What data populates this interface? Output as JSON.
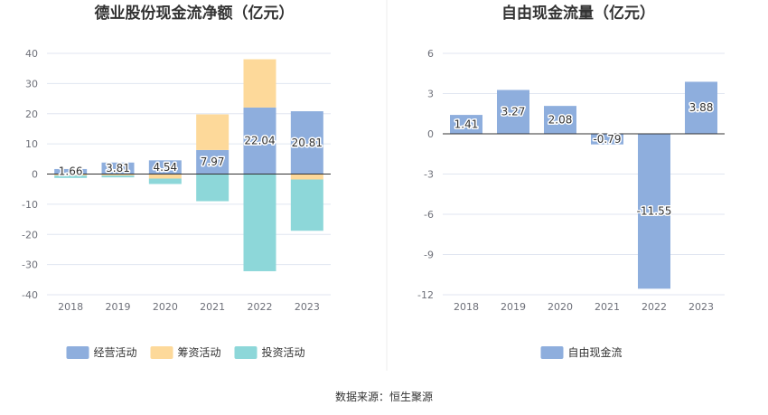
{
  "chart_data": [
    {
      "type": "bar",
      "stacked": true,
      "title": "德业股份现金流净额（亿元）",
      "categories": [
        "2018",
        "2019",
        "2020",
        "2021",
        "2022",
        "2023"
      ],
      "yticks": [
        40,
        30,
        20,
        10,
        0,
        -10,
        -20,
        -30,
        -40
      ],
      "ylim": [
        -40,
        40
      ],
      "series": [
        {
          "name": "经营活动",
          "color": "#8eaedd",
          "values": [
            1.66,
            3.81,
            4.54,
            7.97,
            22.04,
            20.81
          ]
        },
        {
          "name": "筹资活动",
          "color": "#fdd99a",
          "values": [
            -0.5,
            -0.5,
            -1.5,
            11.8,
            16.0,
            -1.8
          ]
        },
        {
          "name": "投资活动",
          "color": "#8dd7d9",
          "values": [
            -0.8,
            -0.6,
            -1.8,
            -9.0,
            -32.2,
            -17.0
          ]
        }
      ],
      "data_labels": [
        "1.66",
        "3.81",
        "4.54",
        "7.97",
        "22.04",
        "20.81"
      ],
      "legend": [
        "经营活动",
        "筹资活动",
        "投资活动"
      ],
      "legend_position": "bottom"
    },
    {
      "type": "bar",
      "title": "自由现金流量（亿元）",
      "categories": [
        "2018",
        "2019",
        "2020",
        "2021",
        "2022",
        "2023"
      ],
      "yticks": [
        6,
        3,
        0,
        -3,
        -6,
        -9,
        -12
      ],
      "ylim": [
        -12,
        6
      ],
      "series": [
        {
          "name": "自由现金流",
          "color": "#8eaedd",
          "values": [
            1.41,
            3.27,
            2.08,
            -0.79,
            -11.55,
            3.88
          ]
        }
      ],
      "data_labels": [
        "1.41",
        "3.27",
        "2.08",
        "-0.79",
        "-11.55",
        "3.88"
      ],
      "legend": [
        "自由现金流"
      ],
      "legend_position": "bottom"
    }
  ],
  "footer": {
    "source": "数据来源：恒生聚源"
  }
}
